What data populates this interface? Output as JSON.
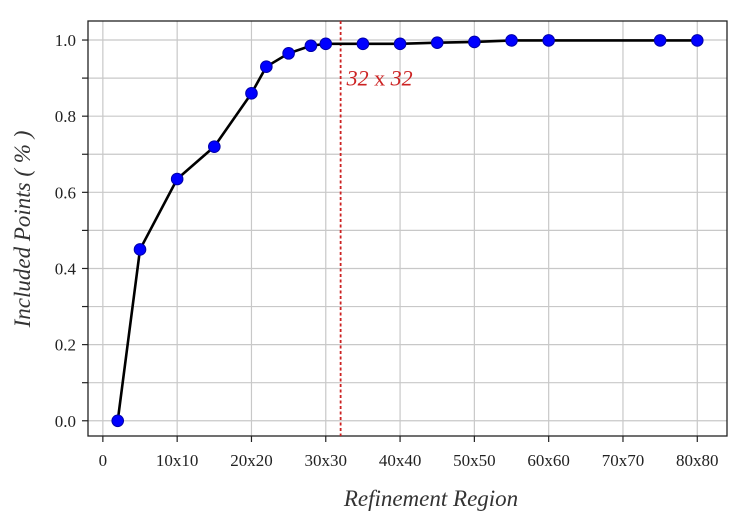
{
  "chart_data": {
    "type": "line",
    "title": "",
    "xlabel": "Refinement Region",
    "ylabel": "Included Points ( % )",
    "xlim": [
      -2,
      84
    ],
    "ylim": [
      -0.04,
      1.05
    ],
    "x_ticks": [
      0,
      10,
      20,
      30,
      40,
      50,
      60,
      70,
      80
    ],
    "x_tick_labels": [
      "0",
      "10x10",
      "20x20",
      "30x30",
      "40x40",
      "50x50",
      "60x60",
      "70x70",
      "80x80"
    ],
    "y_ticks": [
      0.0,
      0.2,
      0.4,
      0.6,
      0.8,
      1.0
    ],
    "y_tick_labels": [
      "0.0",
      "0.2",
      "0.4",
      "0.6",
      "0.8",
      "1.0"
    ],
    "grid": true,
    "series": [
      {
        "x": [
          2,
          5,
          10,
          15,
          20,
          22,
          25,
          28,
          30,
          35,
          40,
          45,
          50,
          55,
          60,
          75,
          80
        ],
        "y": [
          0.0,
          0.45,
          0.635,
          0.72,
          0.86,
          0.93,
          0.965,
          0.985,
          0.99,
          0.99,
          0.99,
          0.993,
          0.995,
          0.999,
          0.999,
          0.999,
          0.999
        ],
        "line_color": "#000000",
        "marker_color": "#0000ff"
      }
    ],
    "vline": {
      "x": 32,
      "color": "#cc2222"
    },
    "annotation": {
      "num1": "32",
      "sep": " x ",
      "num2": "32",
      "x": 32.8,
      "y": 0.88
    }
  }
}
